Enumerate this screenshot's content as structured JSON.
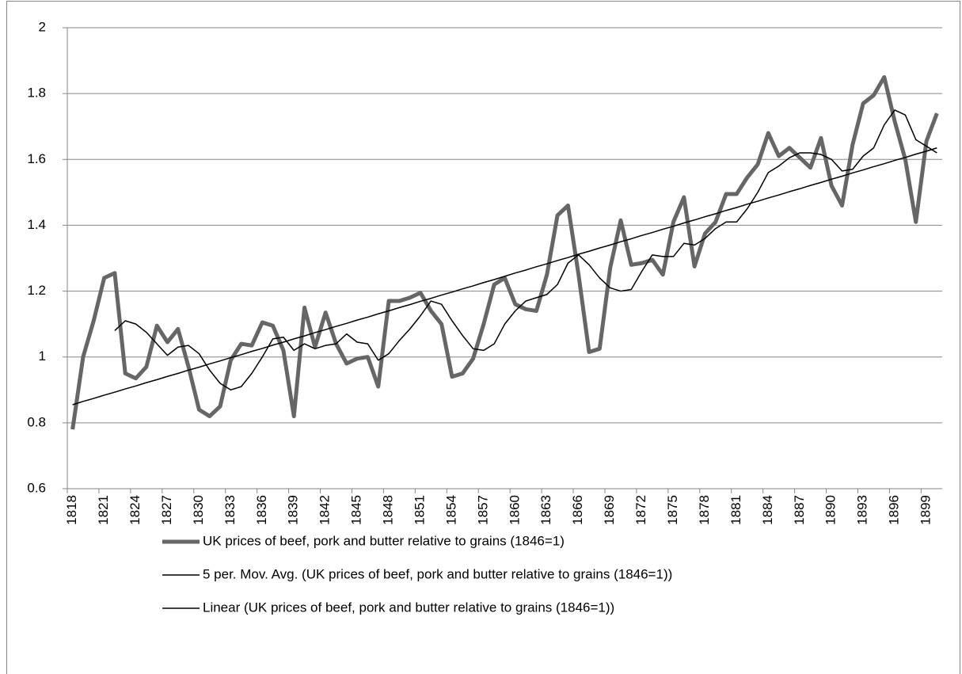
{
  "chart_data": {
    "type": "line",
    "categories": [
      "1818",
      null,
      null,
      "1821",
      null,
      null,
      "1824",
      null,
      null,
      "1827",
      null,
      null,
      "1830",
      null,
      null,
      "1833",
      null,
      null,
      "1836",
      null,
      null,
      "1839",
      null,
      null,
      "1842",
      null,
      null,
      "1845",
      null,
      null,
      "1848",
      null,
      null,
      "1851",
      null,
      null,
      "1854",
      null,
      null,
      "1857",
      null,
      null,
      "1860",
      null,
      null,
      "1863",
      null,
      null,
      "1866",
      null,
      null,
      "1869",
      null,
      null,
      "1872",
      null,
      null,
      "1875",
      null,
      null,
      "1878",
      null,
      null,
      "1881",
      null,
      null,
      "1884",
      null,
      null,
      "1887",
      null,
      null,
      "1890",
      null,
      null,
      "1893",
      null,
      null,
      "1896",
      null,
      null,
      "1899",
      null
    ],
    "series": [
      {
        "name": "UK prices of beef, pork and butter relative to grains (1846=1)",
        "color": "#666666",
        "values": [
          0.78,
          1.0,
          1.11,
          1.24,
          1.255,
          0.95,
          0.935,
          0.97,
          1.095,
          1.045,
          1.085,
          0.97,
          0.84,
          0.82,
          0.85,
          0.99,
          1.04,
          1.035,
          1.105,
          1.095,
          1.02,
          0.82,
          1.15,
          1.03,
          1.135,
          1.04,
          0.98,
          0.995,
          1.0,
          0.91,
          1.17,
          1.17,
          1.18,
          1.195,
          1.14,
          1.1,
          0.94,
          0.95,
          0.995,
          1.1,
          1.22,
          1.24,
          1.16,
          1.145,
          1.14,
          1.25,
          1.43,
          1.46,
          1.25,
          1.015,
          1.025,
          1.27,
          1.415,
          1.28,
          1.285,
          1.295,
          1.25,
          1.41,
          1.485,
          1.275,
          1.375,
          1.41,
          1.495,
          1.495,
          1.545,
          1.585,
          1.68,
          1.61,
          1.635,
          1.605,
          1.575,
          1.665,
          1.52,
          1.46,
          1.645,
          1.77,
          1.795,
          1.85,
          1.715,
          1.6,
          1.41,
          1.655,
          1.74
        ]
      },
      {
        "name": "5 per. Mov. Avg. (UK prices of beef, pork and butter relative to grains (1846=1))",
        "color": "#000000",
        "values": [
          null,
          null,
          null,
          null,
          1.08,
          1.11,
          1.1,
          1.075,
          1.04,
          1.005,
          1.03,
          1.035,
          1.01,
          0.96,
          0.92,
          0.9,
          0.91,
          0.95,
          1.0,
          1.055,
          1.06,
          1.02,
          1.04,
          1.025,
          1.035,
          1.04,
          1.07,
          1.045,
          1.04,
          0.99,
          1.01,
          1.05,
          1.085,
          1.125,
          1.17,
          1.16,
          1.11,
          1.065,
          1.025,
          1.02,
          1.04,
          1.1,
          1.14,
          1.17,
          1.18,
          1.19,
          1.22,
          1.285,
          1.31,
          1.28,
          1.24,
          1.21,
          1.2,
          1.205,
          1.26,
          1.31,
          1.305,
          1.305,
          1.345,
          1.34,
          1.36,
          1.39,
          1.41,
          1.41,
          1.45,
          1.5,
          1.56,
          1.58,
          1.605,
          1.62,
          1.62,
          1.615,
          1.6,
          1.565,
          1.57,
          1.61,
          1.635,
          1.705,
          1.75,
          1.735,
          1.66,
          1.64,
          1.62
        ]
      },
      {
        "name": "Linear (UK prices of beef, pork and butter relative to grains (1846=1))",
        "color": "#000000",
        "values": [
          0.855,
          0.865,
          0.874,
          0.884,
          0.893,
          0.903,
          0.912,
          0.922,
          0.931,
          0.941,
          0.95,
          0.96,
          0.969,
          0.979,
          0.988,
          0.998,
          1.007,
          1.017,
          1.026,
          1.036,
          1.045,
          1.055,
          1.064,
          1.074,
          1.083,
          1.093,
          1.102,
          1.112,
          1.121,
          1.131,
          1.14,
          1.15,
          1.159,
          1.169,
          1.178,
          1.188,
          1.197,
          1.207,
          1.216,
          1.226,
          1.235,
          1.245,
          1.255,
          1.264,
          1.274,
          1.283,
          1.293,
          1.302,
          1.312,
          1.321,
          1.331,
          1.34,
          1.35,
          1.359,
          1.369,
          1.378,
          1.388,
          1.397,
          1.407,
          1.416,
          1.426,
          1.435,
          1.445,
          1.454,
          1.464,
          1.473,
          1.483,
          1.492,
          1.502,
          1.511,
          1.521,
          1.53,
          1.54,
          1.549,
          1.559,
          1.568,
          1.578,
          1.587,
          1.597,
          1.606,
          1.616,
          1.625,
          1.635
        ]
      }
    ],
    "ylim": [
      0.6,
      2
    ],
    "yticks": [
      0.6,
      0.8,
      1,
      1.2,
      1.4,
      1.6,
      1.8,
      2
    ],
    "grid": true,
    "legend": "bottom"
  }
}
